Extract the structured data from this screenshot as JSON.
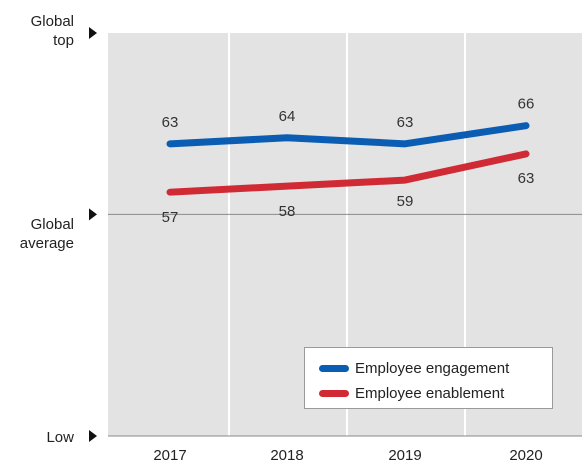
{
  "chart_data": {
    "type": "line",
    "categories": [
      "2017",
      "2018",
      "2019",
      "2020"
    ],
    "y_levels": [
      {
        "label": [
          "Global",
          "top"
        ],
        "value": 100
      },
      {
        "label": [
          "Global",
          "average"
        ],
        "value": 55
      },
      {
        "label": [
          "Low"
        ],
        "value": 0
      }
    ],
    "ylim": [
      0,
      100
    ],
    "grid": true,
    "legend_position": "bottom-right",
    "series": [
      {
        "name": "Employee engagement",
        "color": "#0a5db3",
        "values": [
          63,
          64,
          63,
          66
        ],
        "plot_values": [
          72.5,
          74,
          72.5,
          77
        ]
      },
      {
        "name": "Employee enablement",
        "color": "#d02a35",
        "values": [
          57,
          58,
          59,
          63
        ],
        "plot_values": [
          60.5,
          62,
          63.5,
          70
        ]
      }
    ]
  }
}
